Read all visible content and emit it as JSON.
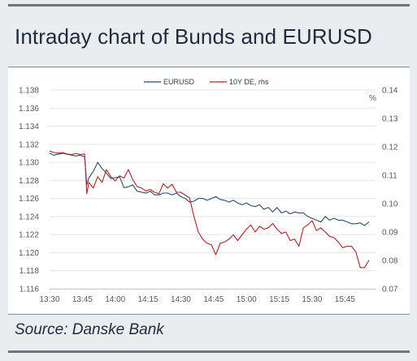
{
  "title": "Intraday chart of Bunds and EURUSD",
  "source": "Source: Danske Bank",
  "chart_data": {
    "type": "line",
    "title": "Intraday chart of Bunds and EURUSD",
    "x_tick_labels": [
      "13:30",
      "13:45",
      "14:00",
      "14:15",
      "14:30",
      "14:45",
      "15:00",
      "15:15",
      "15:30",
      "15:45"
    ],
    "x_tick_minutes": [
      0,
      15,
      30,
      45,
      60,
      75,
      90,
      105,
      120,
      135
    ],
    "x_range": [
      0,
      149
    ],
    "left_axis": {
      "ylim": [
        1.116,
        1.138
      ],
      "ticks": [
        "1.116",
        "1.118",
        "1.120",
        "1.122",
        "1.124",
        "1.126",
        "1.128",
        "1.130",
        "1.132",
        "1.134",
        "1.136",
        "1.138"
      ]
    },
    "right_axis": {
      "unit_label": "%",
      "ylim": [
        0.07,
        0.14
      ],
      "ticks": [
        "0.07",
        "0.08",
        "0.09",
        "0.10",
        "0.11",
        "0.12",
        "0.13",
        "0.14"
      ]
    },
    "legend_position": "top",
    "series": [
      {
        "name": "EURUSD",
        "axis": "left",
        "color": "#2d4b6e",
        "x": [
          0,
          2,
          4,
          6,
          8,
          10,
          12,
          14,
          16,
          17,
          18,
          20,
          22,
          24,
          26,
          28,
          30,
          32,
          34,
          36,
          38,
          40,
          42,
          44,
          46,
          48,
          50,
          52,
          54,
          56,
          58,
          60,
          62,
          64,
          66,
          68,
          70,
          72,
          74,
          76,
          78,
          80,
          82,
          84,
          86,
          88,
          90,
          92,
          94,
          96,
          98,
          100,
          102,
          104,
          106,
          108,
          110,
          112,
          114,
          116,
          118,
          120,
          122,
          124,
          126,
          128,
          130,
          132,
          134,
          136,
          138,
          140,
          142,
          144,
          146
        ],
        "y": [
          1.131,
          1.1308,
          1.1309,
          1.131,
          1.1309,
          1.1308,
          1.1307,
          1.1308,
          1.1306,
          1.1275,
          1.1283,
          1.129,
          1.13,
          1.1293,
          1.1288,
          1.1282,
          1.1283,
          1.1284,
          1.1272,
          1.1273,
          1.1275,
          1.1268,
          1.1267,
          1.1266,
          1.1268,
          1.1264,
          1.1264,
          1.1266,
          1.1266,
          1.1264,
          1.1266,
          1.1262,
          1.126,
          1.1256,
          1.1257,
          1.126,
          1.126,
          1.1258,
          1.126,
          1.1262,
          1.1259,
          1.1258,
          1.1256,
          1.1258,
          1.1255,
          1.1253,
          1.1255,
          1.1252,
          1.1251,
          1.1253,
          1.1248,
          1.125,
          1.1245,
          1.125,
          1.1244,
          1.1246,
          1.1243,
          1.1245,
          1.1244,
          1.1244,
          1.124,
          1.1238,
          1.1236,
          1.1234,
          1.124,
          1.1236,
          1.1238,
          1.1236,
          1.1236,
          1.1234,
          1.1232,
          1.1232,
          1.1233,
          1.123,
          1.1234
        ]
      },
      {
        "name": "10Y DE, rhs",
        "axis": "right",
        "color": "#a32a2a",
        "x": [
          0,
          2,
          4,
          6,
          8,
          10,
          12,
          14,
          16,
          17,
          18,
          20,
          22,
          24,
          26,
          28,
          30,
          32,
          34,
          36,
          38,
          40,
          42,
          44,
          46,
          48,
          50,
          52,
          54,
          56,
          58,
          60,
          62,
          64,
          66,
          68,
          70,
          72,
          74,
          76,
          78,
          80,
          82,
          84,
          86,
          88,
          90,
          92,
          94,
          96,
          98,
          100,
          102,
          104,
          106,
          108,
          110,
          112,
          114,
          116,
          118,
          120,
          122,
          124,
          126,
          128,
          130,
          132,
          134,
          136,
          138,
          140,
          142,
          144,
          146
        ],
        "y": [
          0.1185,
          0.118,
          0.1178,
          0.118,
          0.1175,
          0.1173,
          0.1177,
          0.1173,
          0.1175,
          0.1035,
          0.1075,
          0.1055,
          0.1095,
          0.1075,
          0.112,
          0.1095,
          0.108,
          0.1098,
          0.109,
          0.112,
          0.1085,
          0.106,
          0.1055,
          0.1045,
          0.105,
          0.104,
          0.1035,
          0.107,
          0.1055,
          0.1068,
          0.104,
          0.104,
          0.103,
          0.102,
          0.0955,
          0.09,
          0.0875,
          0.086,
          0.0855,
          0.082,
          0.086,
          0.0865,
          0.0875,
          0.089,
          0.087,
          0.089,
          0.091,
          0.0925,
          0.09,
          0.092,
          0.091,
          0.0915,
          0.093,
          0.091,
          0.0895,
          0.09,
          0.087,
          0.0875,
          0.085,
          0.0915,
          0.0925,
          0.094,
          0.0905,
          0.0915,
          0.09,
          0.0885,
          0.088,
          0.0865,
          0.0845,
          0.085,
          0.085,
          0.083,
          0.0775,
          0.0775,
          0.08
        ]
      }
    ]
  }
}
